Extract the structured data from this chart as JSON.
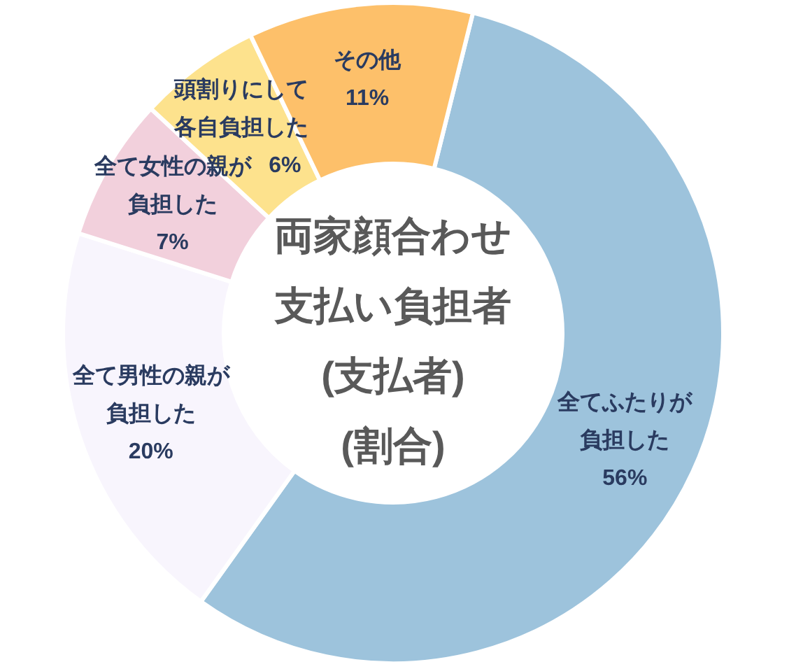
{
  "chart_data": {
    "type": "donut",
    "title": "両家顔合わせ支払い負担者(支払者)(割合)",
    "categories": [
      "全てふたりが負担した",
      "全て男性の親が負担した",
      "全て女性の親が負担した",
      "頭割りにして各自負担した",
      "その他"
    ],
    "values": [
      56,
      20,
      7,
      6,
      11
    ],
    "colors": [
      "#9dc3dc",
      "#f8f5fd",
      "#f2d0dc",
      "#fde28d",
      "#fdc06a"
    ],
    "value_labels": [
      "56%",
      "20%",
      "7%",
      "6%",
      "11%"
    ],
    "legend": false
  }
}
